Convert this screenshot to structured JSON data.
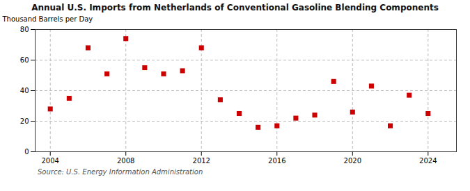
{
  "chart_data": {
    "type": "scatter",
    "title": "Annual U.S. Imports from Netherlands of Conventional Gasoline Blending Components",
    "ylabel": "Thousand Barrels per Day",
    "source": "Source: U.S. Energy Information Administration",
    "x": [
      2004,
      2005,
      2006,
      2007,
      2008,
      2009,
      2010,
      2011,
      2012,
      2013,
      2014,
      2015,
      2016,
      2017,
      2018,
      2019,
      2020,
      2021,
      2022,
      2023,
      2024
    ],
    "values": [
      28,
      35,
      68,
      51,
      74,
      55,
      51,
      53,
      68,
      34,
      25,
      16,
      17,
      22,
      24,
      46,
      26,
      43,
      17,
      37,
      25
    ],
    "color": "#cc0000",
    "marker": "square",
    "xlim": [
      2003.2,
      2025.5
    ],
    "ylim": [
      0,
      80
    ],
    "xticks": [
      2004,
      2008,
      2012,
      2016,
      2020,
      2024
    ],
    "yticks": [
      0,
      20,
      40,
      60,
      80
    ],
    "grid": true
  }
}
